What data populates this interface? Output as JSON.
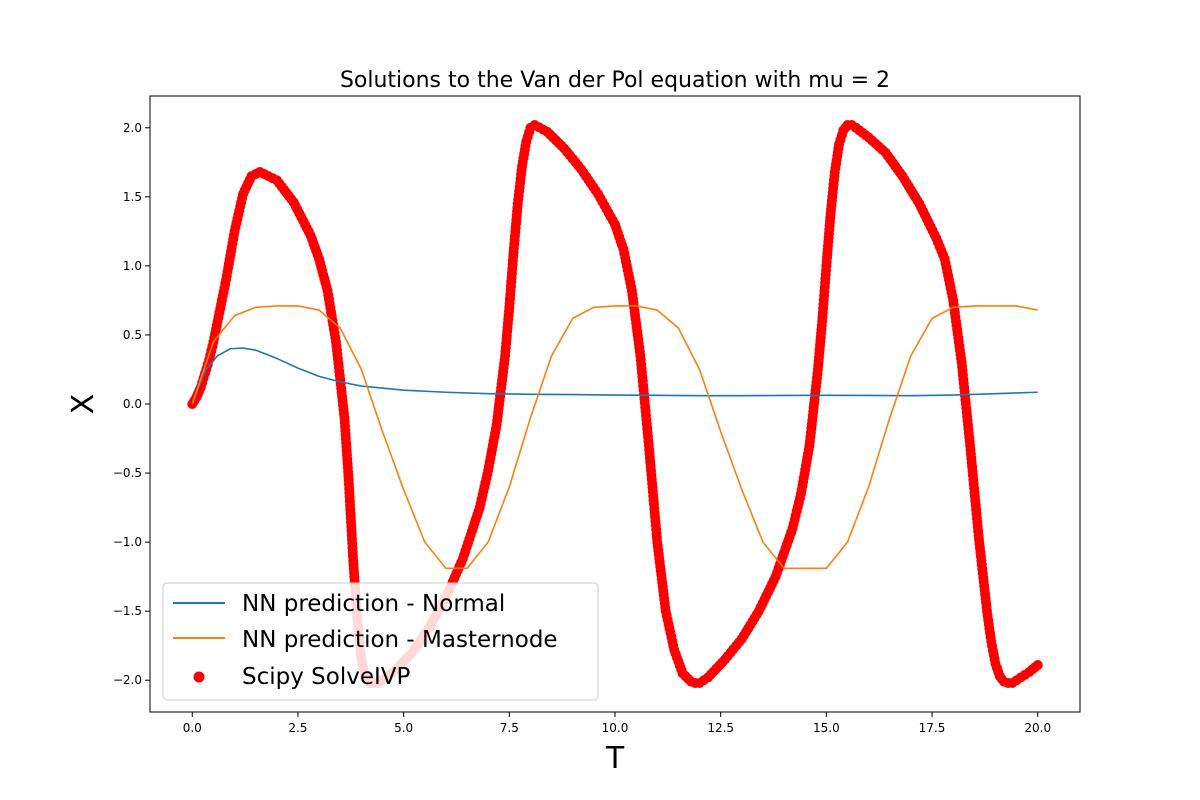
{
  "chart_data": {
    "type": "line",
    "title": "Solutions to the Van der Pol equation with mu = 2",
    "xlabel": "T",
    "ylabel": "X",
    "xlim": [
      -1.0,
      21.0
    ],
    "ylim": [
      -2.23,
      2.23
    ],
    "xticks": [
      0.0,
      2.5,
      5.0,
      7.5,
      10.0,
      12.5,
      15.0,
      17.5,
      20.0
    ],
    "xtick_labels": [
      "0.0",
      "2.5",
      "5.0",
      "7.5",
      "10.0",
      "12.5",
      "15.0",
      "17.5",
      "20.0"
    ],
    "yticks": [
      -2.0,
      -1.5,
      -1.0,
      -0.5,
      0.0,
      0.5,
      1.0,
      1.5,
      2.0
    ],
    "ytick_labels": [
      "−2.0",
      "−1.5",
      "−1.0",
      "−0.5",
      "0.0",
      "0.5",
      "1.0",
      "1.5",
      "2.0"
    ],
    "grid": false,
    "legend_position": "lower-left",
    "series": [
      {
        "name": "NN prediction - Normal",
        "kind": "line",
        "color": "#1f77b4",
        "x": [
          0,
          0.3,
          0.6,
          0.9,
          1.2,
          1.5,
          2,
          2.5,
          3,
          3.5,
          4,
          5,
          6,
          7,
          8,
          9,
          10,
          11,
          12,
          13,
          14,
          15,
          16,
          17,
          18,
          19,
          20
        ],
        "y": [
          0.0,
          0.24,
          0.35,
          0.4,
          0.405,
          0.39,
          0.33,
          0.26,
          0.2,
          0.16,
          0.13,
          0.1,
          0.085,
          0.075,
          0.07,
          0.068,
          0.065,
          0.063,
          0.06,
          0.06,
          0.062,
          0.063,
          0.062,
          0.06,
          0.065,
          0.075,
          0.085
        ]
      },
      {
        "name": "NN prediction - Masternode",
        "kind": "line",
        "color": "#ff7f0e",
        "x": [
          0,
          0.5,
          1,
          1.5,
          2,
          2.5,
          3,
          3.5,
          4,
          4.5,
          5,
          5.5,
          6,
          6.5,
          7,
          7.5,
          8,
          8.5,
          9,
          9.5,
          10,
          10.5,
          11,
          11.5,
          12,
          12.5,
          13,
          13.5,
          14,
          14.5,
          15,
          15.5,
          16,
          16.5,
          17,
          17.5,
          18,
          18.5,
          19,
          19.5,
          20
        ],
        "y": [
          0.0,
          0.45,
          0.64,
          0.7,
          0.71,
          0.71,
          0.68,
          0.55,
          0.25,
          -0.2,
          -0.62,
          -1.0,
          -1.19,
          -1.19,
          -1.0,
          -0.6,
          -0.1,
          0.35,
          0.62,
          0.7,
          0.71,
          0.71,
          0.68,
          0.55,
          0.25,
          -0.2,
          -0.62,
          -1.0,
          -1.19,
          -1.19,
          -1.19,
          -1.0,
          -0.6,
          -0.1,
          0.35,
          0.62,
          0.7,
          0.71,
          0.71,
          0.71,
          0.68
        ]
      },
      {
        "name": "Scipy SolveIVP",
        "kind": "scatter",
        "color": "#ff0000",
        "x": [
          0,
          0.1,
          0.2,
          0.3,
          0.4,
          0.5,
          0.6,
          0.8,
          1,
          1.2,
          1.4,
          1.6,
          2,
          2.4,
          2.8,
          3,
          3.2,
          3.4,
          3.6,
          3.7,
          3.8,
          3.9,
          4,
          4.1,
          4.2,
          4.4,
          4.8,
          5.2,
          5.6,
          6,
          6.4,
          6.8,
          7,
          7.2,
          7.4,
          7.5,
          7.6,
          7.7,
          7.8,
          7.9,
          8,
          8.1,
          8.4,
          8.8,
          9.2,
          9.6,
          10,
          10.2,
          10.4,
          10.6,
          10.8,
          11,
          11.2,
          11.4,
          11.6,
          11.8,
          11.9,
          12,
          12.2,
          12.6,
          13,
          13.4,
          13.8,
          14.2,
          14.4,
          14.6,
          14.8,
          14.9,
          15,
          15.1,
          15.2,
          15.3,
          15.4,
          15.5,
          15.6,
          15.7,
          16,
          16.4,
          16.8,
          17.2,
          17.6,
          17.8,
          18,
          18.2,
          18.4,
          18.6,
          18.8,
          18.9,
          19,
          19.1,
          19.2,
          19.3,
          19.4,
          19.5,
          19.6,
          19.8,
          20
        ],
        "y": [
          0,
          0.05,
          0.12,
          0.22,
          0.32,
          0.45,
          0.6,
          0.9,
          1.25,
          1.52,
          1.65,
          1.68,
          1.62,
          1.46,
          1.22,
          1.05,
          0.82,
          0.45,
          -0.1,
          -0.55,
          -1.1,
          -1.55,
          -1.85,
          -1.98,
          -2.02,
          -2.02,
          -1.93,
          -1.8,
          -1.62,
          -1.4,
          -1.12,
          -0.75,
          -0.48,
          -0.15,
          0.35,
          0.7,
          1.1,
          1.45,
          1.72,
          1.9,
          2.0,
          2.02,
          1.97,
          1.85,
          1.7,
          1.52,
          1.3,
          1.12,
          0.82,
          0.35,
          -0.3,
          -1.0,
          -1.5,
          -1.78,
          -1.95,
          -2.01,
          -2.02,
          -2.02,
          -1.98,
          -1.85,
          -1.7,
          -1.5,
          -1.25,
          -0.9,
          -0.65,
          -0.3,
          0.25,
          0.6,
          1.0,
          1.38,
          1.68,
          1.88,
          1.98,
          2.02,
          2.02,
          2.0,
          1.93,
          1.82,
          1.65,
          1.45,
          1.2,
          1.05,
          0.75,
          0.3,
          -0.3,
          -0.95,
          -1.5,
          -1.72,
          -1.88,
          -1.97,
          -2.01,
          -2.02,
          -2.02,
          -2.0,
          -1.98,
          -1.94,
          -1.89
        ]
      }
    ]
  }
}
